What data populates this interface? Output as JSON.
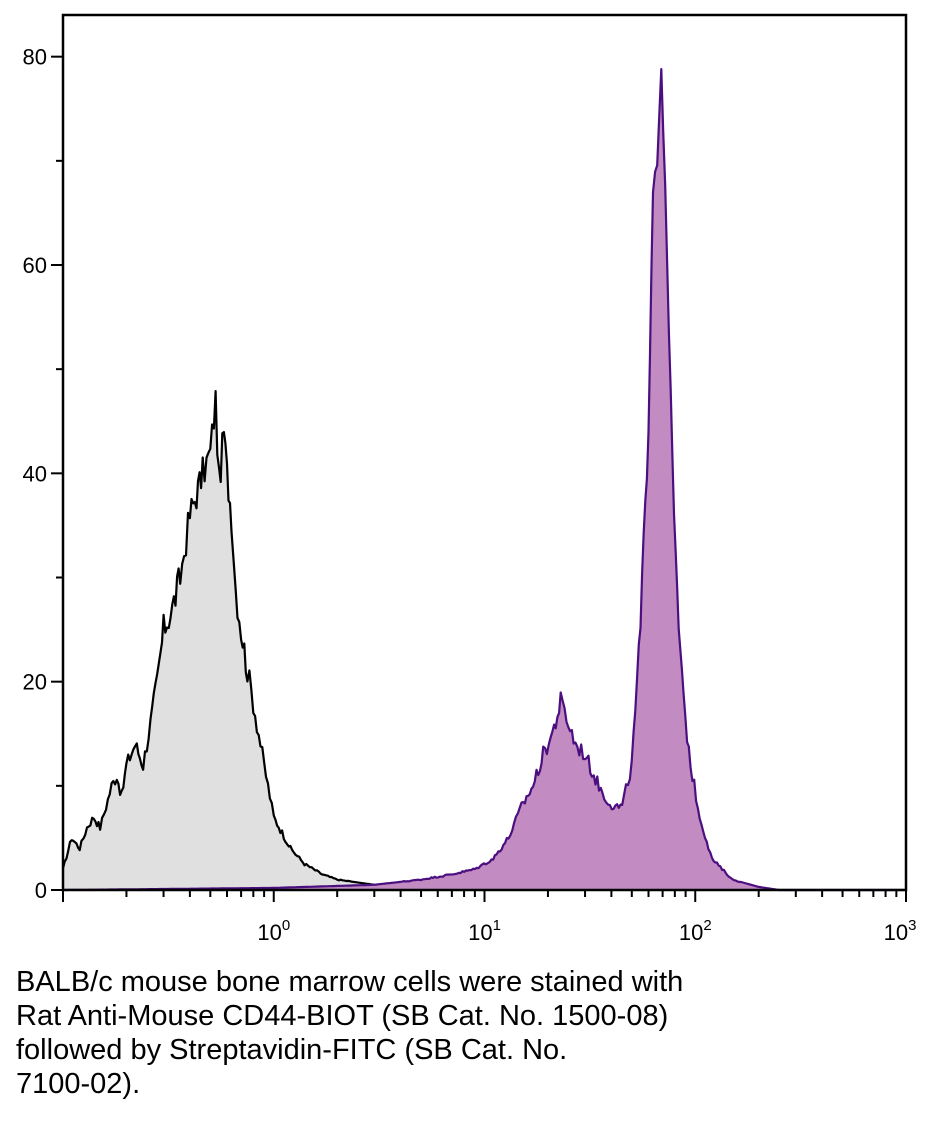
{
  "chart_data": {
    "type": "area",
    "title": "",
    "xlabel": "",
    "ylabel": "",
    "x_scale": "log",
    "xlim": [
      0.1,
      1000
    ],
    "ylim": [
      0,
      84
    ],
    "grid": false,
    "legend": "none",
    "x_ticks": [
      {
        "value": 1,
        "base": "10",
        "exp": "0"
      },
      {
        "value": 10,
        "base": "10",
        "exp": "1"
      },
      {
        "value": 100,
        "base": "10",
        "exp": "2"
      },
      {
        "value": 1000,
        "base": "10",
        "exp": "3"
      }
    ],
    "y_ticks": [
      0,
      20,
      40,
      60,
      80
    ],
    "series": [
      {
        "fill": "#e0e0e0",
        "stroke": "#000000",
        "x": [
          0.1,
          0.11,
          0.12,
          0.13,
          0.14,
          0.15,
          0.16,
          0.17,
          0.18,
          0.19,
          0.2,
          0.22,
          0.24,
          0.26,
          0.28,
          0.3,
          0.33,
          0.36,
          0.4,
          0.43,
          0.46,
          0.5,
          0.53,
          0.55,
          0.58,
          0.6,
          0.63,
          0.66,
          0.7,
          0.75,
          0.8,
          0.9,
          1.0,
          1.2,
          1.4,
          1.7,
          2.0,
          3.0,
          4.0,
          6.0
        ],
        "y": [
          2,
          5,
          4,
          6,
          7,
          6,
          8,
          10,
          11,
          9,
          12,
          14,
          12,
          16,
          20,
          25,
          27,
          30,
          36,
          38,
          40,
          42,
          47,
          39,
          44,
          40,
          36,
          29,
          25,
          21,
          18,
          12,
          7,
          4,
          2.5,
          1.5,
          1,
          0.5,
          0.2,
          0
        ]
      },
      {
        "fill": "#c28cc2",
        "stroke": "#4b0f80",
        "x": [
          0.1,
          1.0,
          3.0,
          5.0,
          7.0,
          9.0,
          11.0,
          13.0,
          15.0,
          17.0,
          19.0,
          21.0,
          23.0,
          25.0,
          27.0,
          30.0,
          33.0,
          37.0,
          41.0,
          45.0,
          50.0,
          55.0,
          60.0,
          63.0,
          66.0,
          69.0,
          72.0,
          75.0,
          78.0,
          82.0,
          88.0,
          95.0,
          105.0,
          120.0,
          150.0,
          200.0,
          250.0,
          500.0,
          1000.0
        ],
        "y": [
          0,
          0.2,
          0.5,
          1,
          1.5,
          2,
          3,
          5,
          8,
          10,
          13,
          15,
          18,
          16,
          14,
          13,
          11,
          9,
          8,
          8,
          12,
          25,
          45,
          68,
          70,
          80,
          66,
          55,
          40,
          28,
          18,
          12,
          7,
          3,
          1,
          0.3,
          0,
          0,
          0
        ]
      }
    ]
  },
  "caption": {
    "lines": [
      "BALB/c mouse bone marrow cells were stained with",
      "Rat Anti-Mouse CD44-BIOT (SB Cat. No. 1500-08)",
      "followed by Streptavidin-FITC (SB Cat. No.",
      "7100-02)."
    ]
  }
}
